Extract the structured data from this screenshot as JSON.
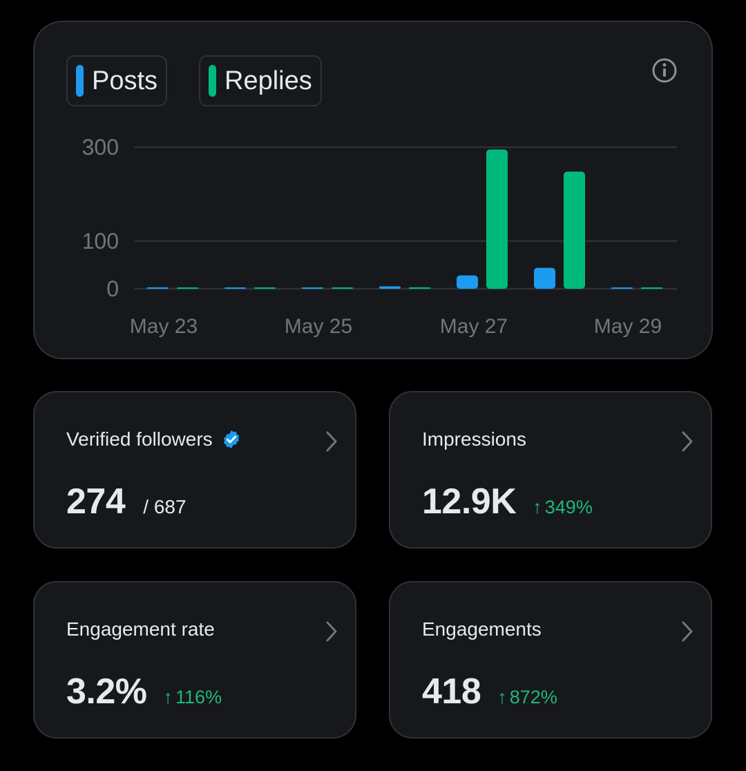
{
  "legend": {
    "posts_label": "Posts",
    "replies_label": "Replies"
  },
  "info_icon": "info-icon",
  "colors": {
    "posts": "#1d9bf0",
    "replies": "#00ba7c",
    "change_positive": "#1fb87a",
    "verified": "#1d9bf0"
  },
  "chart_data": {
    "type": "bar",
    "x": [
      "May 23",
      "May 24",
      "May 25",
      "May 26",
      "May 27",
      "May 28",
      "May 29"
    ],
    "x_tick_labels": [
      "May 23",
      "May 25",
      "May 27",
      "May 29"
    ],
    "y_tick_labels": [
      "300",
      "100",
      "0"
    ],
    "y_ticks": [
      300,
      100,
      0
    ],
    "ylim": [
      0,
      300
    ],
    "grid": true,
    "legend_placement": "top-left",
    "series": [
      {
        "name": "Posts",
        "values": [
          3,
          0,
          1,
          5,
          28,
          44,
          0
        ]
      },
      {
        "name": "Replies",
        "values": [
          1,
          0,
          1,
          3,
          295,
          248,
          0
        ]
      }
    ]
  },
  "stats": [
    {
      "title": "Verified followers",
      "value": "274",
      "sub": "/ 687",
      "change": "",
      "verified": true
    },
    {
      "title": "Impressions",
      "value": "12.9K",
      "sub": "",
      "change": "349%",
      "verified": false
    },
    {
      "title": "Engagement rate",
      "value": "3.2%",
      "sub": "",
      "change": "116%",
      "verified": false
    },
    {
      "title": "Engagements",
      "value": "418",
      "sub": "",
      "change": "872%",
      "verified": false
    }
  ],
  "change_arrow": "↑"
}
